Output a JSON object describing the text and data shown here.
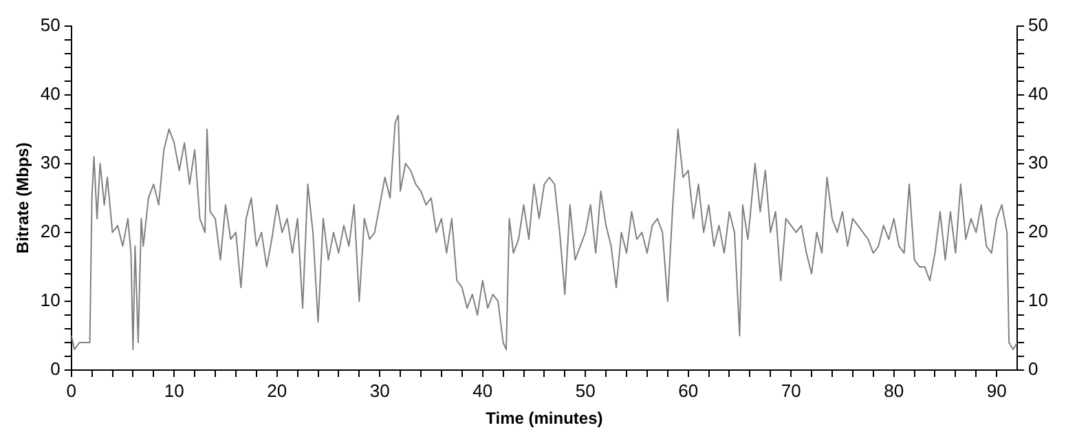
{
  "chart_data": {
    "type": "line",
    "xlabel": "Time (minutes)",
    "ylabel": "Bitrate (Mbps)",
    "grid": false,
    "legend": false,
    "marker": "none",
    "line_style": "solid",
    "xlim": [
      0,
      92
    ],
    "ylim": [
      0,
      50
    ],
    "y2lim": [
      0,
      50
    ],
    "xticks": [
      0,
      {
        "value": 2,
        "label": null
      },
      {
        "value": 4,
        "label": null
      },
      {
        "value": 6,
        "label": null
      },
      {
        "value": 8,
        "label": null
      },
      10,
      {
        "value": 12,
        "label": null
      },
      {
        "value": 14,
        "label": null
      },
      {
        "value": 16,
        "label": null
      },
      {
        "value": 18,
        "label": null
      },
      20,
      {
        "value": 22,
        "label": null
      },
      {
        "value": 24,
        "label": null
      },
      {
        "value": 26,
        "label": null
      },
      {
        "value": 28,
        "label": null
      },
      30,
      {
        "value": 32,
        "label": null
      },
      {
        "value": 34,
        "label": null
      },
      {
        "value": 36,
        "label": null
      },
      {
        "value": 38,
        "label": null
      },
      40,
      {
        "value": 42,
        "label": null
      },
      {
        "value": 44,
        "label": null
      },
      {
        "value": 46,
        "label": null
      },
      {
        "value": 48,
        "label": null
      },
      50,
      {
        "value": 52,
        "label": null
      },
      {
        "value": 54,
        "label": null
      },
      {
        "value": 56,
        "label": null
      },
      {
        "value": 58,
        "label": null
      },
      60,
      {
        "value": 62,
        "label": null
      },
      {
        "value": 64,
        "label": null
      },
      {
        "value": 66,
        "label": null
      },
      {
        "value": 68,
        "label": null
      },
      70,
      {
        "value": 72,
        "label": null
      },
      {
        "value": 74,
        "label": null
      },
      {
        "value": 76,
        "label": null
      },
      {
        "value": 78,
        "label": null
      },
      80,
      {
        "value": 82,
        "label": null
      },
      {
        "value": 84,
        "label": null
      },
      {
        "value": 86,
        "label": null
      },
      {
        "value": 88,
        "label": null
      },
      90
    ],
    "yticks": [
      0,
      {
        "value": 2,
        "label": null
      },
      {
        "value": 4,
        "label": null
      },
      {
        "value": 6,
        "label": null
      },
      {
        "value": 8,
        "label": null
      },
      10,
      {
        "value": 12,
        "label": null
      },
      {
        "value": 14,
        "label": null
      },
      {
        "value": 16,
        "label": null
      },
      {
        "value": 18,
        "label": null
      },
      20,
      {
        "value": 22,
        "label": null
      },
      {
        "value": 24,
        "label": null
      },
      {
        "value": 26,
        "label": null
      },
      {
        "value": 28,
        "label": null
      },
      30,
      {
        "value": 32,
        "label": null
      },
      {
        "value": 34,
        "label": null
      },
      {
        "value": 36,
        "label": null
      },
      {
        "value": 38,
        "label": null
      },
      40,
      {
        "value": 42,
        "label": null
      },
      {
        "value": 44,
        "label": null
      },
      {
        "value": 46,
        "label": null
      },
      {
        "value": 48,
        "label": null
      },
      50
    ],
    "y2ticks": [
      0,
      {
        "value": 2,
        "label": null
      },
      {
        "value": 4,
        "label": null
      },
      {
        "value": 6,
        "label": null
      },
      {
        "value": 8,
        "label": null
      },
      10,
      {
        "value": 12,
        "label": null
      },
      {
        "value": 14,
        "label": null
      },
      {
        "value": 16,
        "label": null
      },
      {
        "value": 18,
        "label": null
      },
      20,
      {
        "value": 22,
        "label": null
      },
      {
        "value": 24,
        "label": null
      },
      {
        "value": 26,
        "label": null
      },
      {
        "value": 28,
        "label": null
      },
      30,
      {
        "value": 32,
        "label": null
      },
      {
        "value": 34,
        "label": null
      },
      {
        "value": 36,
        "label": null
      },
      {
        "value": 38,
        "label": null
      },
      40,
      {
        "value": 42,
        "label": null
      },
      {
        "value": 44,
        "label": null
      },
      {
        "value": 46,
        "label": null
      },
      {
        "value": 48,
        "label": null
      },
      50
    ],
    "series": [
      {
        "color": "#808080",
        "x": [
          0,
          0.3,
          0.8,
          1.5,
          1.8,
          2.0,
          2.2,
          2.5,
          2.8,
          3.2,
          3.5,
          4.0,
          4.5,
          5.0,
          5.5,
          5.8,
          6.0,
          6.2,
          6.5,
          6.8,
          7.0,
          7.5,
          8.0,
          8.5,
          9.0,
          9.5,
          10.0,
          10.5,
          11.0,
          11.5,
          12.0,
          12.5,
          13.0,
          13.2,
          13.5,
          14.0,
          14.5,
          15.0,
          15.5,
          16.0,
          16.5,
          17.0,
          17.5,
          18.0,
          18.5,
          19.0,
          19.5,
          20.0,
          20.5,
          21.0,
          21.5,
          22.0,
          22.5,
          23.0,
          23.5,
          24.0,
          24.5,
          25.0,
          25.5,
          26.0,
          26.5,
          27.0,
          27.5,
          28.0,
          28.5,
          29.0,
          29.5,
          30.0,
          30.5,
          31.0,
          31.5,
          31.8,
          32.0,
          32.5,
          33.0,
          33.5,
          34.0,
          34.5,
          35.0,
          35.5,
          36.0,
          36.5,
          37.0,
          37.5,
          38.0,
          38.5,
          39.0,
          39.5,
          40.0,
          40.5,
          41.0,
          41.5,
          42.0,
          42.3,
          42.6,
          43.0,
          43.5,
          44.0,
          44.5,
          45.0,
          45.5,
          46.0,
          46.5,
          47.0,
          47.5,
          48.0,
          48.5,
          49.0,
          49.5,
          50.0,
          50.5,
          51.0,
          51.5,
          52.0,
          52.5,
          53.0,
          53.5,
          54.0,
          54.5,
          55.0,
          55.5,
          56.0,
          56.5,
          57.0,
          57.5,
          58.0,
          58.5,
          59.0,
          59.5,
          60.0,
          60.5,
          61.0,
          61.5,
          62.0,
          62.5,
          63.0,
          63.5,
          64.0,
          64.5,
          65.0,
          65.3,
          65.8,
          66.0,
          66.5,
          67.0,
          67.5,
          68.0,
          68.5,
          69.0,
          69.5,
          70.0,
          70.5,
          71.0,
          71.5,
          72.0,
          72.5,
          73.0,
          73.5,
          74.0,
          74.5,
          75.0,
          75.5,
          76.0,
          76.5,
          77.0,
          77.5,
          78.0,
          78.5,
          79.0,
          79.5,
          80.0,
          80.5,
          81.0,
          81.5,
          82.0,
          82.5,
          83.0,
          83.5,
          84.0,
          84.5,
          85.0,
          85.5,
          86.0,
          86.5,
          87.0,
          87.5,
          88.0,
          88.5,
          89.0,
          89.5,
          90.0,
          90.5,
          91.0,
          91.2,
          91.6,
          92.0
        ],
        "values": [
          5,
          3,
          4,
          4,
          4,
          25,
          31,
          22,
          30,
          24,
          28,
          20,
          21,
          18,
          22,
          17,
          3,
          18,
          4,
          22,
          18,
          25,
          27,
          24,
          32,
          35,
          33,
          29,
          33,
          27,
          32,
          22,
          20,
          35,
          23,
          22,
          16,
          24,
          19,
          20,
          12,
          22,
          25,
          18,
          20,
          15,
          19,
          24,
          20,
          22,
          17,
          22,
          9,
          27,
          20,
          7,
          22,
          16,
          20,
          17,
          21,
          18,
          24,
          10,
          22,
          19,
          20,
          24,
          28,
          25,
          36,
          37,
          26,
          30,
          29,
          27,
          26,
          24,
          25,
          20,
          22,
          17,
          22,
          13,
          12,
          9,
          11,
          8,
          13,
          9,
          11,
          10,
          4,
          3,
          22,
          17,
          19,
          24,
          19,
          27,
          22,
          27,
          28,
          27,
          20,
          11,
          24,
          16,
          18,
          20,
          24,
          17,
          26,
          21,
          18,
          12,
          20,
          17,
          23,
          19,
          20,
          17,
          21,
          22,
          20,
          10,
          24,
          35,
          28,
          29,
          22,
          27,
          20,
          24,
          18,
          21,
          17,
          23,
          20,
          5,
          24,
          19,
          22,
          30,
          23,
          29,
          20,
          23,
          13,
          22,
          21,
          20,
          21,
          17,
          14,
          20,
          17,
          28,
          22,
          20,
          23,
          18,
          22,
          21,
          20,
          19,
          17,
          18,
          21,
          19,
          22,
          18,
          17,
          27,
          16,
          15,
          15,
          13,
          17,
          23,
          16,
          23,
          17,
          27,
          19,
          22,
          20,
          24,
          18,
          17,
          22,
          24,
          20,
          4,
          3,
          4
        ]
      }
    ]
  }
}
